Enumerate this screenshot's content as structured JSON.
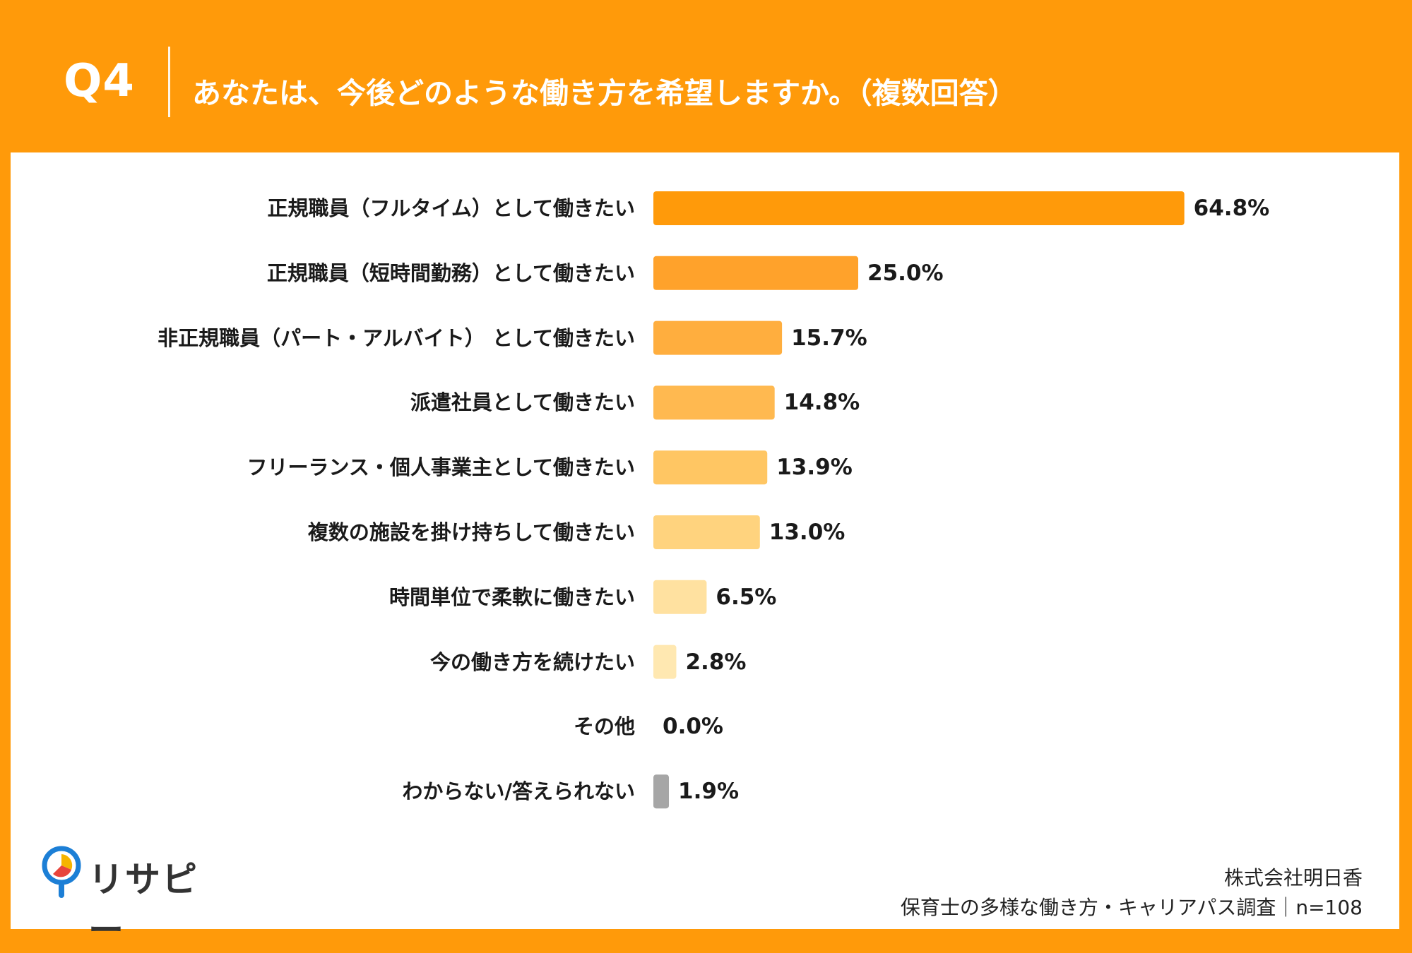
{
  "header": {
    "question_number": "Q4",
    "title": "あなたは、今後どのような働き方を希望しますか。（複数回答）"
  },
  "chart_data": {
    "type": "bar",
    "orientation": "horizontal",
    "title": "あなたは、今後どのような働き方を希望しますか。（複数回答）",
    "categories": [
      "正規職員（フルタイム）として働きたい",
      "正規職員（短時間勤務）として働きたい",
      "非正規職員（パート・アルバイト） として働きたい",
      "派遣社員として働きたい",
      "フリーランス・個人事業主として働きたい",
      "複数の施設を掛け持ちして働きたい",
      "時間単位で柔軟に働きたい",
      "今の働き方を続けたい",
      "その他",
      "わからない/答えられない"
    ],
    "values": [
      64.8,
      25.0,
      15.7,
      14.8,
      13.9,
      13.0,
      6.5,
      2.8,
      0.0,
      1.9
    ],
    "value_labels": [
      "64.8%",
      "25.0%",
      "15.7%",
      "14.8%",
      "13.9%",
      "13.0%",
      "6.5%",
      "2.8%",
      "0.0%",
      "1.9%"
    ],
    "colors": [
      "#FF9A0A",
      "#FFA22B",
      "#FFAE3E",
      "#FFB950",
      "#FFC663",
      "#FFD37E",
      "#FFE1A0",
      "#FFE8B1",
      "#FFEFC7",
      "#A6A6A6"
    ],
    "unit": "%",
    "xlim": [
      0,
      100
    ],
    "xlabel": "",
    "ylabel": "",
    "grid": false,
    "legend": "none"
  },
  "brand": {
    "logo_text": "リサピー",
    "logo_colors": [
      "#1C7FD6",
      "#F5B400",
      "#E8453C"
    ]
  },
  "source": {
    "company": "株式会社明日香",
    "survey": "保育士の多様な働き方・キャリアパス調査｜n=108"
  }
}
